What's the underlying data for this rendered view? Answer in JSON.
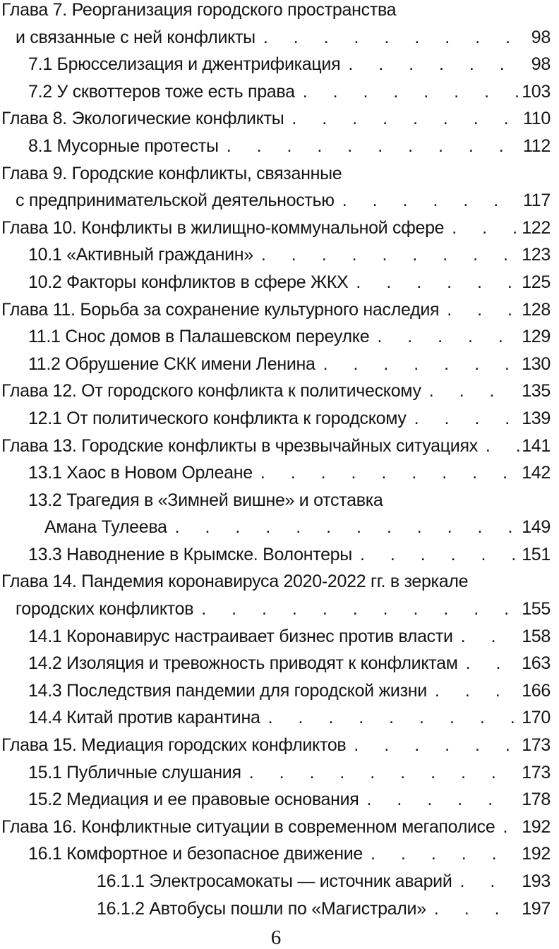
{
  "colors": {
    "background": "#ffffff",
    "text": "#141414"
  },
  "toc": {
    "lines": [
      {
        "text": "Глава 7. Реорганизация городского пространства",
        "level": 0,
        "page": null
      },
      {
        "text": "и связанные с ней конфликты",
        "level": 1,
        "page": "98"
      },
      {
        "text": "7.1 Брюсселизация и джентрификация",
        "level": 2,
        "page": "98"
      },
      {
        "text": "7.2 У сквоттеров тоже есть права",
        "level": 2,
        "page": "103"
      },
      {
        "text": "Глава 8. Экологические конфликты",
        "level": 0,
        "page": "110"
      },
      {
        "text": "8.1 Мусорные протесты",
        "level": 2,
        "page": "112"
      },
      {
        "text": "Глава 9. Городские конфликты, связанные",
        "level": 0,
        "page": null
      },
      {
        "text": "с предпринимательской деятельностью",
        "level": 1,
        "page": "117"
      },
      {
        "text": "Глава 10. Конфликты в жилищно-коммунальной сфере",
        "level": 0,
        "page": "122"
      },
      {
        "text": "10.1 «Активный гражданин»",
        "level": 2,
        "page": "123"
      },
      {
        "text": "10.2 Факторы конфликтов в сфере ЖКХ",
        "level": 2,
        "page": "125"
      },
      {
        "text": "Глава 11. Борьба за сохранение культурного наследия",
        "level": 0,
        "page": "128"
      },
      {
        "text": "11.1 Снос домов в Палашевском переулке",
        "level": 2,
        "page": "129"
      },
      {
        "text": "11.2 Обрушение СКК имени Ленина",
        "level": 2,
        "page": "130"
      },
      {
        "text": "Глава 12. От городского конфликта к политическому",
        "level": 0,
        "page": "135"
      },
      {
        "text": "12.1 От политического конфликта к городскому",
        "level": 2,
        "page": "139"
      },
      {
        "text": "Глава 13. Городские конфликты в чрезвычайных ситуациях",
        "level": 0,
        "page": "141"
      },
      {
        "text": "13.1 Хаос в Новом Орлеане",
        "level": 2,
        "page": "142"
      },
      {
        "text": "13.2 Трагедия в «Зимней вишне» и отставка",
        "level": 2,
        "page": null
      },
      {
        "text": "Амана Тулеева",
        "level": 3,
        "page": "149"
      },
      {
        "text": "13.3 Наводнение в Крымске. Волонтеры",
        "level": 2,
        "page": "151"
      },
      {
        "text": "Глава 14. Пандемия коронавируса 2020-2022 гг. в зеркале",
        "level": 0,
        "page": null
      },
      {
        "text": "городских конфликтов",
        "level": 1,
        "page": "155"
      },
      {
        "text": "14.1 Коронавирус настраивает бизнес против власти",
        "level": 2,
        "page": "158"
      },
      {
        "text": "14.2 Изоляция и тревожность приводят к конфликтам",
        "level": 2,
        "page": "163"
      },
      {
        "text": "14.3 Последствия пандемии для городской жизни",
        "level": 2,
        "page": "166"
      },
      {
        "text": "14.4 Китай против карантина",
        "level": 2,
        "page": "170"
      },
      {
        "text": "Глава 15. Медиация городских конфликтов",
        "level": 0,
        "page": "173"
      },
      {
        "text": "15.1 Публичные слушания",
        "level": 2,
        "page": "173"
      },
      {
        "text": "15.2 Медиация и ее правовые основания",
        "level": 2,
        "page": "178"
      },
      {
        "text": "Глава 16. Конфликтные ситуации в современном мегаполисе",
        "level": 0,
        "page": "192"
      },
      {
        "text": "16.1 Комфортное и безопасное движение",
        "level": 2,
        "page": "192"
      },
      {
        "text": "16.1.1 Электросамокаты — источник аварий",
        "level": 4,
        "page": "193"
      },
      {
        "text": "16.1.2 Автобусы пошли по «Магистрали»",
        "level": 4,
        "page": "197"
      }
    ]
  },
  "footer": {
    "page_number": "6"
  }
}
